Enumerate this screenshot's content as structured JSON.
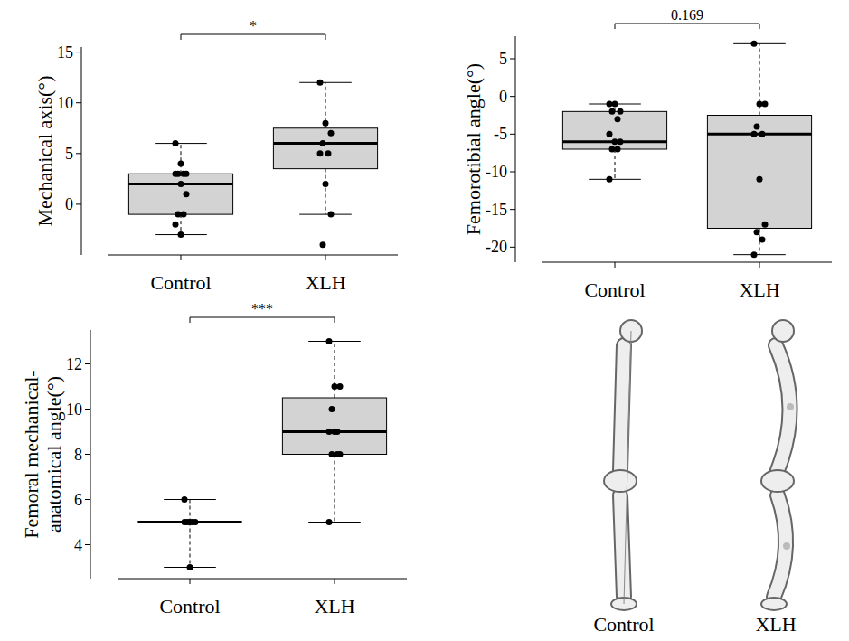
{
  "chart_data": [
    {
      "type": "box",
      "y_label": "Mechanical axis(°)",
      "categories": [
        "Control",
        "XLH"
      ],
      "color": "#d3d3d3",
      "ylim": [
        -5,
        15.5
      ],
      "yticks": [
        0,
        5,
        10,
        15
      ],
      "boxes": [
        {
          "min": -3,
          "q1": -1,
          "median": 2,
          "q3": 3,
          "max": 6
        },
        {
          "min": -1,
          "q1": 3.5,
          "median": 6,
          "q3": 7.5,
          "max": 12
        }
      ],
      "points": [
        [
          6,
          4,
          3,
          3,
          3,
          3,
          2,
          1,
          -1,
          -1,
          -2,
          -3
        ],
        [
          12,
          8,
          7,
          6,
          5,
          5,
          2,
          -1,
          -4
        ]
      ],
      "annotation": "*"
    },
    {
      "type": "box",
      "y_label": "Femorotibial angle(°)",
      "categories": [
        "Control",
        "XLH"
      ],
      "color": "#d3d3d3",
      "ylim": [
        -22,
        8
      ],
      "yticks": [
        5,
        0,
        -5,
        -10,
        -15,
        -20
      ],
      "boxes": [
        {
          "min": -11,
          "q1": -7,
          "median": -6,
          "q3": -2,
          "max": -1
        },
        {
          "min": -21,
          "q1": -17.5,
          "median": -5,
          "q3": -2.5,
          "max": 7
        }
      ],
      "points": [
        [
          -1,
          -1,
          -2,
          -2,
          -3,
          -5,
          -6,
          -6,
          -7,
          -7,
          -11
        ],
        [
          7,
          -1,
          -1,
          -4,
          -5,
          -5,
          -11,
          -17,
          -18,
          -19,
          -21
        ]
      ],
      "annotation": "0.169"
    },
    {
      "type": "box",
      "y_label": "Femoral mechanical-anatomical angle(°)",
      "categories": [
        "Control",
        "XLH"
      ],
      "color": "#d3d3d3",
      "ylim": [
        2.5,
        13.5
      ],
      "yticks": [
        4,
        6,
        8,
        10,
        12
      ],
      "boxes": [
        {
          "min": 3,
          "q1": 5,
          "median": 5,
          "q3": 5,
          "max": 6
        },
        {
          "min": 5,
          "q1": 8,
          "median": 9,
          "q3": 10.5,
          "max": 13
        }
      ],
      "points": [
        [
          6,
          5,
          5,
          5,
          5,
          5,
          3
        ],
        [
          13,
          11,
          11,
          10,
          9,
          9,
          9,
          8,
          8,
          8,
          5
        ]
      ],
      "annotation": "***"
    }
  ],
  "illustration": {
    "labels": [
      "Control",
      "XLH"
    ]
  }
}
